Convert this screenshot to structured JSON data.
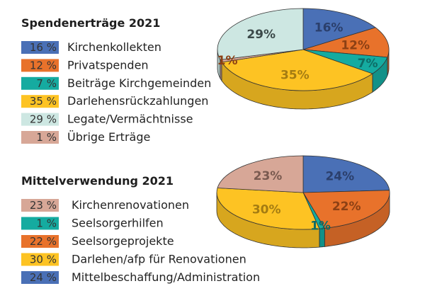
{
  "chart_data": [
    {
      "type": "pie",
      "title": "Spendenerträge 2021",
      "categories": [
        "Kirchenkollekten",
        "Privatspenden",
        "Beiträge Kirchgemeinden",
        "Darlehensrückzahlungen",
        "Legate/Vermächtnisse",
        "Übrige Erträge"
      ],
      "values": [
        16,
        12,
        7,
        35,
        29,
        1
      ],
      "legend_labels": [
        "16 %",
        "12 %",
        "7 %",
        "35 %",
        "29 %",
        "1 %"
      ],
      "pie_labels": [
        "16%",
        "12%",
        "7%",
        "35%",
        "29%",
        "1%"
      ],
      "pie_order": [
        0,
        1,
        2,
        3,
        5,
        4
      ],
      "colors": [
        "#4a70b6",
        "#e8722b",
        "#15aba0",
        "#fdc323",
        "#cde7e2",
        "#d7a797"
      ],
      "label_colors": [
        "#2b3f6c",
        "#8c4014",
        "#0d6c66",
        "#a47c12",
        "#3c4a4a",
        "#8c4014"
      ]
    },
    {
      "type": "pie",
      "title": "Mittelverwendung 2021",
      "categories": [
        "Kirchenrenovationen",
        "Seelsorgerhilfen",
        "Seelsorgeprojekte",
        "Darlehen/afp für Renovationen",
        "Mittelbeschaffung/Administration"
      ],
      "values": [
        23,
        1,
        22,
        30,
        24
      ],
      "legend_labels": [
        "23 %",
        "1 %",
        "22 %",
        "30 %",
        "24 %"
      ],
      "pie_labels": [
        "23%",
        "1%",
        "22%",
        "30%",
        "24%"
      ],
      "pie_order": [
        4,
        2,
        1,
        3,
        0
      ],
      "colors": [
        "#d7a797",
        "#15aba0",
        "#e8722b",
        "#fdc323",
        "#4a70b6"
      ],
      "label_colors": [
        "#7a5a50",
        "#0d6c66",
        "#8c4014",
        "#a47c12",
        "#2b3f6c"
      ]
    }
  ]
}
